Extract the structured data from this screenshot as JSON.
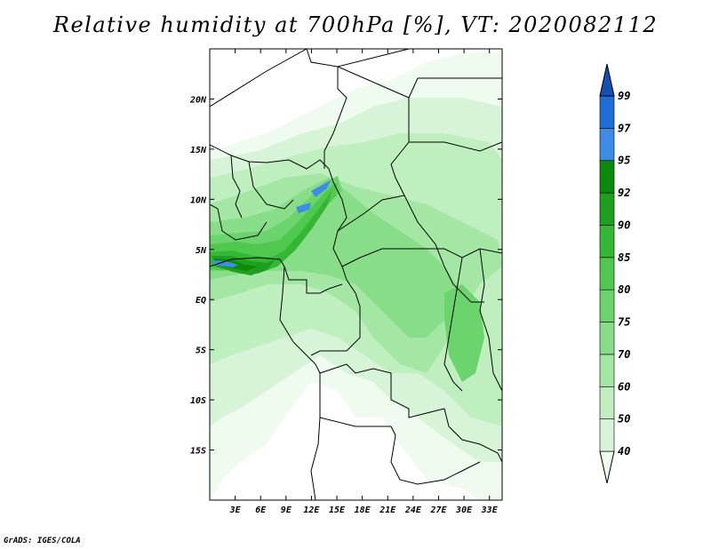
{
  "title": "Relative humidity at 700hPa [%], VT: 2020082112",
  "credit": "GrADS: IGES/COLA",
  "map": {
    "lon_range": [
      0,
      34.5
    ],
    "lat_range": [
      -20,
      25
    ],
    "lon_ticks": [
      "3E",
      "6E",
      "9E",
      "12E",
      "15E",
      "18E",
      "21E",
      "24E",
      "27E",
      "30E",
      "33E"
    ],
    "lat_ticks": [
      "20N",
      "15N",
      "10N",
      "5N",
      "EQ",
      "5S",
      "10S",
      "15S"
    ]
  },
  "colorbar": {
    "levels": [
      "40",
      "50",
      "60",
      "70",
      "75",
      "80",
      "85",
      "90",
      "92",
      "95",
      "97",
      "99"
    ],
    "colors": [
      "#f0fbf0",
      "#d8f4d8",
      "#c0eec0",
      "#a4e6a4",
      "#88de88",
      "#6cd46c",
      "#50c850",
      "#34b834",
      "#1ea01e",
      "#0c8a0c",
      "#3c8ce8",
      "#1e6ed8",
      "#1450b4"
    ]
  }
}
